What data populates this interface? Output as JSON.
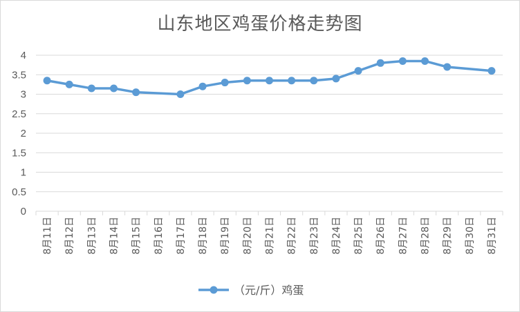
{
  "chart_data": {
    "type": "line",
    "title": "山东地区鸡蛋价格走势图",
    "categories": [
      "8月11日",
      "8月12日",
      "8月13日",
      "8月14日",
      "8月15日",
      "8月16日",
      "8月17日",
      "8月18日",
      "8月19日",
      "8月20日",
      "8月21日",
      "8月22日",
      "8月23日",
      "8月24日",
      "8月25日",
      "8月26日",
      "8月27日",
      "8月28日",
      "8月29日",
      "8月30日",
      "8月31日"
    ],
    "series": [
      {
        "name": "（元/斤）鸡蛋",
        "values": [
          3.35,
          3.25,
          3.15,
          3.15,
          3.05,
          null,
          3.0,
          3.2,
          3.3,
          3.35,
          3.35,
          3.35,
          3.35,
          3.4,
          3.6,
          3.8,
          3.85,
          3.85,
          3.7,
          null,
          3.6
        ],
        "color": "#5b9bd5"
      }
    ],
    "yticks": [
      "0",
      "0.5",
      "1",
      "1.5",
      "2",
      "2.5",
      "3",
      "3.5",
      "4"
    ],
    "ylim": [
      0,
      4
    ],
    "grid": true,
    "legend_position": "bottom"
  }
}
